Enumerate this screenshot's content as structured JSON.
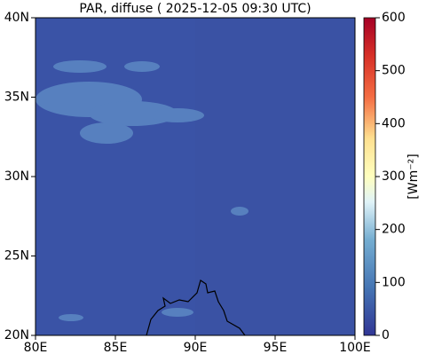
{
  "map": {
    "title": "PAR, diffuse ( 2025-12-05 09:30 UTC)",
    "xlim": [
      80,
      100
    ],
    "ylim": [
      20,
      40
    ],
    "xticks": [
      {
        "value": 80,
        "label": "80E"
      },
      {
        "value": 85,
        "label": "85E"
      },
      {
        "value": 90,
        "label": "90E"
      },
      {
        "value": 95,
        "label": "95E"
      },
      {
        "value": 100,
        "label": "100E"
      }
    ],
    "yticks": [
      {
        "value": 20,
        "label": "20N"
      },
      {
        "value": 25,
        "label": "25N"
      },
      {
        "value": 30,
        "label": "30N"
      },
      {
        "value": 35,
        "label": "35N"
      },
      {
        "value": 40,
        "label": "40N"
      }
    ],
    "colorbar": {
      "label": "[Wm⁻²]",
      "lim": [
        0,
        600
      ],
      "ticks": [
        0,
        100,
        200,
        300,
        400,
        500,
        600
      ]
    }
  }
}
